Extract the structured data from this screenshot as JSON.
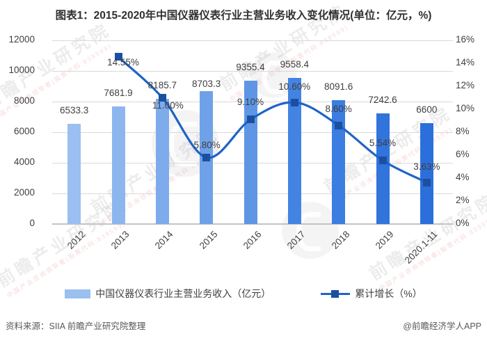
{
  "title": "图表1：2015-2020年中国仪器仪表行业主营业务收入变化情况(单位：亿元，%)",
  "chart_data": {
    "type": "bar",
    "subtype": "bar+line combo, smoothed line on secondary axis",
    "categories": [
      "2012",
      "2013",
      "2014",
      "2015",
      "2016",
      "2017",
      "2018",
      "2019",
      "2020.1-11"
    ],
    "series": [
      {
        "name": "中国仪器仪表行业主营业务收入（亿元）",
        "type": "bar",
        "axis": "left",
        "values": [
          6533.3,
          7681.9,
          8185.7,
          8703.3,
          9355.4,
          9558.4,
          8091.6,
          7242.6,
          6600
        ],
        "labels": [
          "6533.3",
          "7681.9",
          "8185.7",
          "8703.3",
          "9355.4",
          "9558.4",
          "8091.6",
          "7242.6",
          "6600"
        ],
        "bar_colors": [
          "#9ABFF0",
          "#8DB6EE",
          "#7EABEB",
          "#6FA1E8",
          "#5E96E5",
          "#4384E2",
          "#3B7DE0",
          "#3174DC",
          "#2B6FDA"
        ],
        "label_dy": [
          -19,
          -19,
          -19,
          -10,
          -19,
          -19,
          -19,
          -19,
          -19
        ]
      },
      {
        "name": "累计增长（%）",
        "type": "line",
        "axis": "right",
        "values": [
          null,
          14.55,
          11.0,
          5.8,
          9.1,
          10.6,
          8.6,
          5.54,
          3.63
        ],
        "labels": [
          "",
          "14.55%",
          "11.00%",
          "5.80%",
          "9.10%",
          "10.60%",
          "8.60%",
          "5.54%",
          "3.63%"
        ],
        "line_color": "#1E63C8",
        "marker_color": "#1C4FA0",
        "label_dy": [
          0,
          8,
          11,
          -17,
          -25,
          -22,
          -23,
          -25,
          -22
        ],
        "label_dx": [
          0,
          7,
          8,
          1,
          0,
          0,
          0,
          0,
          0
        ]
      }
    ],
    "left_axis": {
      "ticks": [
        "12000",
        "10000",
        "8000",
        "6000",
        "4000",
        "2000",
        "0"
      ],
      "min": 0,
      "max": 12000
    },
    "right_axis": {
      "ticks": [
        "16%",
        "14%",
        "12%",
        "10%",
        "8%",
        "6%",
        "4%",
        "2%",
        "0%"
      ],
      "min": 0,
      "max": 16
    },
    "grid": true,
    "legend_position": "bottom"
  },
  "legend": {
    "revenue": "中国仪器仪表行业主营业务收入（亿元）",
    "growth": "累计增长（%）"
  },
  "footer": {
    "source": "资料来源：SIIA 前瞻产业研究院整理",
    "credit": "@前瞻经济学人APP"
  },
  "watermark": {
    "text": "前瞻产业研究院",
    "subtext": "中国产业咨询领导者(股票代码:839599)"
  },
  "colors": {
    "legend_bar_swatch": "#9ABFF0",
    "grid": "#D9D9D9",
    "axis_line": "#C3C3C3",
    "label_text": "#3F3F3F",
    "title_text": "#303030",
    "footer_text": "#595959"
  }
}
